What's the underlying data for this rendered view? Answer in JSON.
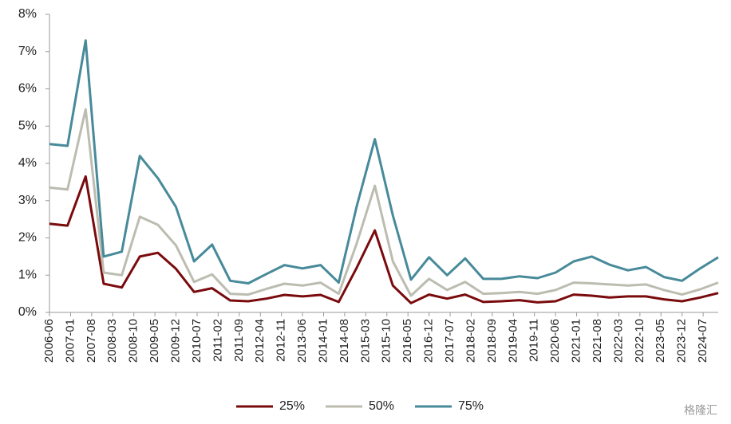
{
  "chart_data": {
    "type": "line",
    "x": [
      "2006-06",
      "2006-12",
      "2007-06",
      "2007-12",
      "2008-06",
      "2008-12",
      "2009-06",
      "2009-12",
      "2010-06",
      "2010-12",
      "2011-06",
      "2011-12",
      "2012-06",
      "2012-12",
      "2013-06",
      "2013-12",
      "2014-06",
      "2014-12",
      "2015-06",
      "2015-12",
      "2016-06",
      "2016-12",
      "2017-06",
      "2017-12",
      "2018-06",
      "2018-12",
      "2019-06",
      "2019-12",
      "2020-06",
      "2020-12",
      "2021-06",
      "2021-12",
      "2022-06",
      "2022-12",
      "2023-06",
      "2023-12",
      "2024-06",
      "2024-12"
    ],
    "xlim": [
      "2006-06",
      "2024-12"
    ],
    "xticks": [
      "2006-06",
      "2007-01",
      "2007-08",
      "2008-03",
      "2008-10",
      "2009-05",
      "2009-12",
      "2010-07",
      "2011-02",
      "2011-09",
      "2012-04",
      "2012-11",
      "2013-06",
      "2014-01",
      "2014-08",
      "2015-03",
      "2015-10",
      "2016-05",
      "2016-12",
      "2017-07",
      "2018-02",
      "2018-09",
      "2019-04",
      "2019-11",
      "2020-06",
      "2021-01",
      "2021-08",
      "2022-03",
      "2022-10",
      "2023-05",
      "2023-12",
      "2024-07"
    ],
    "ylim": [
      0,
      8
    ],
    "yticks": [
      {
        "value": 0,
        "label": "0%"
      },
      {
        "value": 1,
        "label": "1%"
      },
      {
        "value": 2,
        "label": "2%"
      },
      {
        "value": 3,
        "label": "3%"
      },
      {
        "value": 4,
        "label": "4%"
      },
      {
        "value": 5,
        "label": "5%"
      },
      {
        "value": 6,
        "label": "6%"
      },
      {
        "value": 7,
        "label": "7%"
      },
      {
        "value": 8,
        "label": "8%"
      }
    ],
    "grid": false,
    "legend": "bottom",
    "series": [
      {
        "name": "25%",
        "color": "#7a0b0d",
        "values": [
          2.38,
          2.33,
          3.65,
          0.77,
          0.67,
          1.5,
          1.6,
          1.17,
          0.55,
          0.65,
          0.32,
          0.3,
          0.37,
          0.47,
          0.43,
          0.47,
          0.28,
          1.2,
          2.2,
          0.72,
          0.25,
          0.48,
          0.37,
          0.48,
          0.28,
          0.3,
          0.33,
          0.27,
          0.3,
          0.48,
          0.45,
          0.4,
          0.43,
          0.43,
          0.35,
          0.3,
          0.4,
          0.52
        ]
      },
      {
        "name": "50%",
        "color": "#bdbcb0",
        "values": [
          3.35,
          3.3,
          5.45,
          1.07,
          1.0,
          2.57,
          2.35,
          1.8,
          0.82,
          1.02,
          0.5,
          0.48,
          0.63,
          0.77,
          0.72,
          0.8,
          0.5,
          1.85,
          3.4,
          1.37,
          0.45,
          0.9,
          0.6,
          0.82,
          0.5,
          0.52,
          0.55,
          0.5,
          0.6,
          0.8,
          0.78,
          0.75,
          0.72,
          0.75,
          0.6,
          0.48,
          0.62,
          0.8
        ]
      },
      {
        "name": "75%",
        "color": "#478a99",
        "values": [
          4.52,
          4.47,
          7.3,
          1.5,
          1.63,
          4.2,
          3.6,
          2.83,
          1.37,
          1.82,
          0.85,
          0.78,
          1.03,
          1.27,
          1.18,
          1.27,
          0.8,
          2.85,
          4.65,
          2.6,
          0.88,
          1.48,
          1.0,
          1.45,
          0.9,
          0.9,
          0.97,
          0.92,
          1.07,
          1.37,
          1.5,
          1.28,
          1.13,
          1.22,
          0.95,
          0.85,
          1.18,
          1.48
        ]
      }
    ],
    "watermark": "格隆汇"
  }
}
